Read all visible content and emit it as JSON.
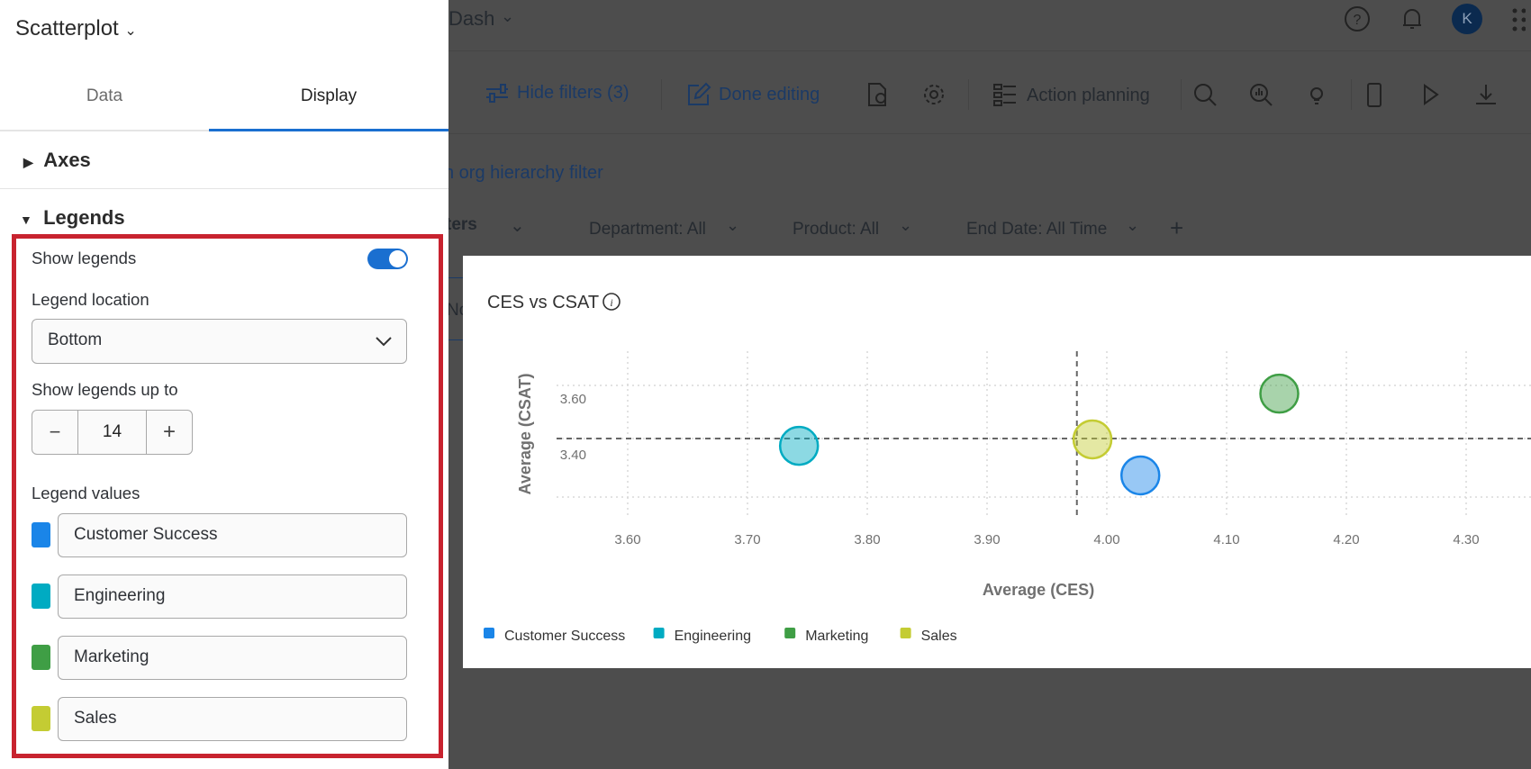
{
  "panel": {
    "title": "Scatterplot",
    "tabs": [
      {
        "label": "Data",
        "active": false
      },
      {
        "label": "Display",
        "active": true
      }
    ],
    "sections": {
      "axes": "Axes",
      "legends": "Legends"
    },
    "show_legends": {
      "label": "Show legends",
      "enabled": true
    },
    "legend_location": {
      "label": "Legend location",
      "value": "Bottom"
    },
    "show_up_to": {
      "label": "Show legends up to",
      "value": "14",
      "minus": "−",
      "plus": "+"
    },
    "legend_values": {
      "label": "Legend values",
      "items": [
        {
          "label": "Customer Success",
          "color": "#1a85e8"
        },
        {
          "label": "Engineering",
          "color": "#00abc2"
        },
        {
          "label": "Marketing",
          "color": "#3f9e45"
        },
        {
          "label": "Sales",
          "color": "#c4cc33"
        }
      ]
    },
    "highlight_color": "#c8232f"
  },
  "header": {
    "dashboard": "Dash",
    "avatar": "K"
  },
  "toolbar": {
    "hide_filters": "Hide filters (3)",
    "done_editing": "Done editing",
    "action_planning": "Action planning"
  },
  "filters": {
    "org_link": "n org hierarchy filter",
    "saved": "ters",
    "partial": "No",
    "items": [
      "Department: All",
      "Product: All",
      "End Date: All Time"
    ]
  },
  "chart_data": {
    "type": "scatter",
    "title": "CES vs CSAT",
    "xlabel": "Average (CES)",
    "ylabel": "Average (CSAT)",
    "x_ticks": [
      "3.60",
      "3.70",
      "3.80",
      "3.90",
      "4.00",
      "4.10",
      "4.20",
      "4.30"
    ],
    "y_ticks": [
      "3.60",
      "3.40"
    ],
    "grid": true,
    "legend_position": "bottom",
    "reference_lines": {
      "x": 3.975,
      "y": 3.458
    },
    "series": [
      {
        "name": "Customer Success",
        "color": "#1a85e8",
        "x": 4.028,
        "y": 3.326
      },
      {
        "name": "Engineering",
        "color": "#00abc2",
        "x": 3.743,
        "y": 3.432
      },
      {
        "name": "Marketing",
        "color": "#3f9e45",
        "x": 4.144,
        "y": 3.619
      },
      {
        "name": "Sales",
        "color": "#c4cc33",
        "x": 3.988,
        "y": 3.455
      }
    ]
  }
}
